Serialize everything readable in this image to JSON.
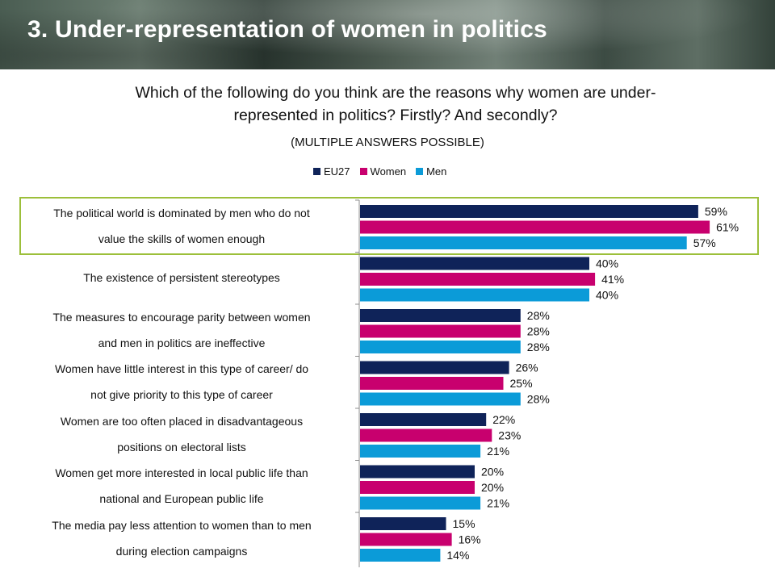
{
  "title": "3. Under-representation of women in politics",
  "question_line1": "Which of the following do you think are the reasons why women are under-",
  "question_line2": "represented in politics? Firstly? And secondly?",
  "note": "(MULTIPLE ANSWERS POSSIBLE)",
  "chart_data": {
    "type": "bar",
    "orientation": "horizontal",
    "categories": [
      [
        "The political world is dominated by men who do not",
        "value the skills of women enough"
      ],
      [
        "The existence of persistent stereotypes"
      ],
      [
        "The measures to encourage parity between women",
        "and men in politics are ineffective"
      ],
      [
        "Women have little interest in this type of career/ do",
        "not give priority to this type of career"
      ],
      [
        "Women are too often placed in disadvantageous",
        "positions on electoral lists"
      ],
      [
        "Women get more interested in local public life than",
        "national and European public life"
      ],
      [
        "The media pay less attention to women than to men",
        "during election campaigns"
      ]
    ],
    "series": [
      {
        "name": "EU27",
        "color": "#0f2359",
        "values": [
          59,
          40,
          28,
          26,
          22,
          20,
          15
        ]
      },
      {
        "name": "Women",
        "color": "#c8006e",
        "values": [
          61,
          41,
          28,
          25,
          23,
          20,
          16
        ]
      },
      {
        "name": "Men",
        "color": "#0b9bd8",
        "values": [
          57,
          40,
          28,
          28,
          21,
          21,
          14
        ]
      }
    ],
    "value_suffix": "%",
    "legend_position": "top",
    "grid": false,
    "xlim": [
      0,
      65
    ],
    "highlighted_category_index": 0
  }
}
